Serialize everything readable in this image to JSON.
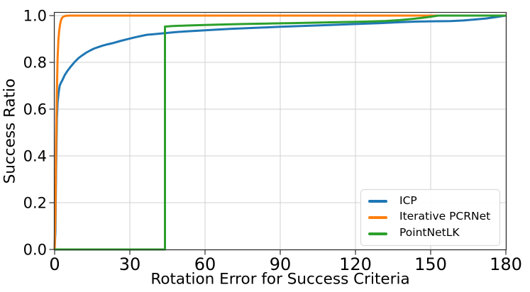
{
  "chart_data": {
    "type": "line",
    "title": "",
    "xlabel": "Rotation Error for Success Criteria",
    "ylabel": "Success Ratio",
    "xlim": [
      0,
      180
    ],
    "ylim": [
      0,
      1.02
    ],
    "grid": true,
    "legend_position": "lower right",
    "x_ticks": [
      0,
      30,
      60,
      90,
      120,
      150,
      180
    ],
    "x_tick_labels": [
      "0",
      "30",
      "60",
      "90",
      "120",
      "150",
      "180"
    ],
    "y_ticks": [
      0.0,
      0.2,
      0.4,
      0.6,
      0.8,
      1.0
    ],
    "y_tick_labels": [
      "0.0",
      "0.2",
      "0.4",
      "0.6",
      "0.8",
      "1.0"
    ],
    "series": [
      {
        "name": "ICP",
        "color": "#1f77b4",
        "points": [
          [
            0,
            0
          ],
          [
            0.3,
            0.08
          ],
          [
            0.6,
            0.35
          ],
          [
            0.9,
            0.56
          ],
          [
            1.2,
            0.63
          ],
          [
            1.6,
            0.672
          ],
          [
            2,
            0.7
          ],
          [
            2.5,
            0.712
          ],
          [
            3,
            0.722
          ],
          [
            4,
            0.745
          ],
          [
            5,
            0.762
          ],
          [
            6.5,
            0.783
          ],
          [
            8,
            0.802
          ],
          [
            9.5,
            0.818
          ],
          [
            11,
            0.83
          ],
          [
            12.5,
            0.841
          ],
          [
            14,
            0.85
          ],
          [
            15.5,
            0.858
          ],
          [
            17,
            0.864
          ],
          [
            19,
            0.871
          ],
          [
            21,
            0.877
          ],
          [
            23.5,
            0.883
          ],
          [
            26,
            0.891
          ],
          [
            29,
            0.899
          ],
          [
            32,
            0.907
          ],
          [
            35,
            0.914
          ],
          [
            36.7,
            0.918
          ],
          [
            40,
            0.921
          ],
          [
            44,
            0.925
          ],
          [
            48,
            0.929
          ],
          [
            52,
            0.932
          ],
          [
            57,
            0.935
          ],
          [
            63,
            0.939
          ],
          [
            70,
            0.943
          ],
          [
            80,
            0.948
          ],
          [
            90,
            0.952
          ],
          [
            100,
            0.956
          ],
          [
            110,
            0.96
          ],
          [
            120,
            0.964
          ],
          [
            130,
            0.968
          ],
          [
            138,
            0.972
          ],
          [
            145,
            0.9745
          ],
          [
            152,
            0.9757
          ],
          [
            158,
            0.9768
          ],
          [
            163,
            0.979
          ],
          [
            168,
            0.9835
          ],
          [
            172,
            0.9875
          ],
          [
            176,
            0.9935
          ],
          [
            180,
            1.0
          ]
        ]
      },
      {
        "name": "Iterative PCRNet",
        "color": "#ff7f0e",
        "points": [
          [
            0,
            0
          ],
          [
            0.3,
            0.15
          ],
          [
            0.6,
            0.45
          ],
          [
            0.9,
            0.68
          ],
          [
            1.2,
            0.82
          ],
          [
            1.5,
            0.895
          ],
          [
            1.8,
            0.935
          ],
          [
            2.2,
            0.965
          ],
          [
            2.6,
            0.982
          ],
          [
            3,
            0.991
          ],
          [
            3.6,
            0.996
          ],
          [
            4.5,
            0.999
          ],
          [
            6,
            1.0
          ],
          [
            180,
            1.0
          ]
        ]
      },
      {
        "name": "PointNetLK",
        "color": "#2ca02c",
        "points": [
          [
            0,
            0
          ],
          [
            44,
            0
          ],
          [
            44,
            0.953
          ],
          [
            47,
            0.9555
          ],
          [
            55,
            0.9585
          ],
          [
            65,
            0.9615
          ],
          [
            75,
            0.964
          ],
          [
            85,
            0.966
          ],
          [
            95,
            0.968
          ],
          [
            105,
            0.97
          ],
          [
            115,
            0.9725
          ],
          [
            125,
            0.9745
          ],
          [
            132,
            0.977
          ],
          [
            138,
            0.981
          ],
          [
            143,
            0.986
          ],
          [
            147,
            0.991
          ],
          [
            150,
            0.9952
          ],
          [
            153,
            1.0
          ],
          [
            180,
            1.0
          ]
        ]
      }
    ]
  },
  "legend": {
    "items": [
      {
        "label": "ICP",
        "color": "#1f77b4"
      },
      {
        "label": "Iterative PCRNet",
        "color": "#ff7f0e"
      },
      {
        "label": "PointNetLK",
        "color": "#2ca02c"
      }
    ]
  },
  "style_colors": {
    "grid": "#d0d0d0",
    "spine": "#2e2e2e",
    "tick": "#2e2e2e",
    "text": "#000000",
    "background": "#ffffff"
  }
}
